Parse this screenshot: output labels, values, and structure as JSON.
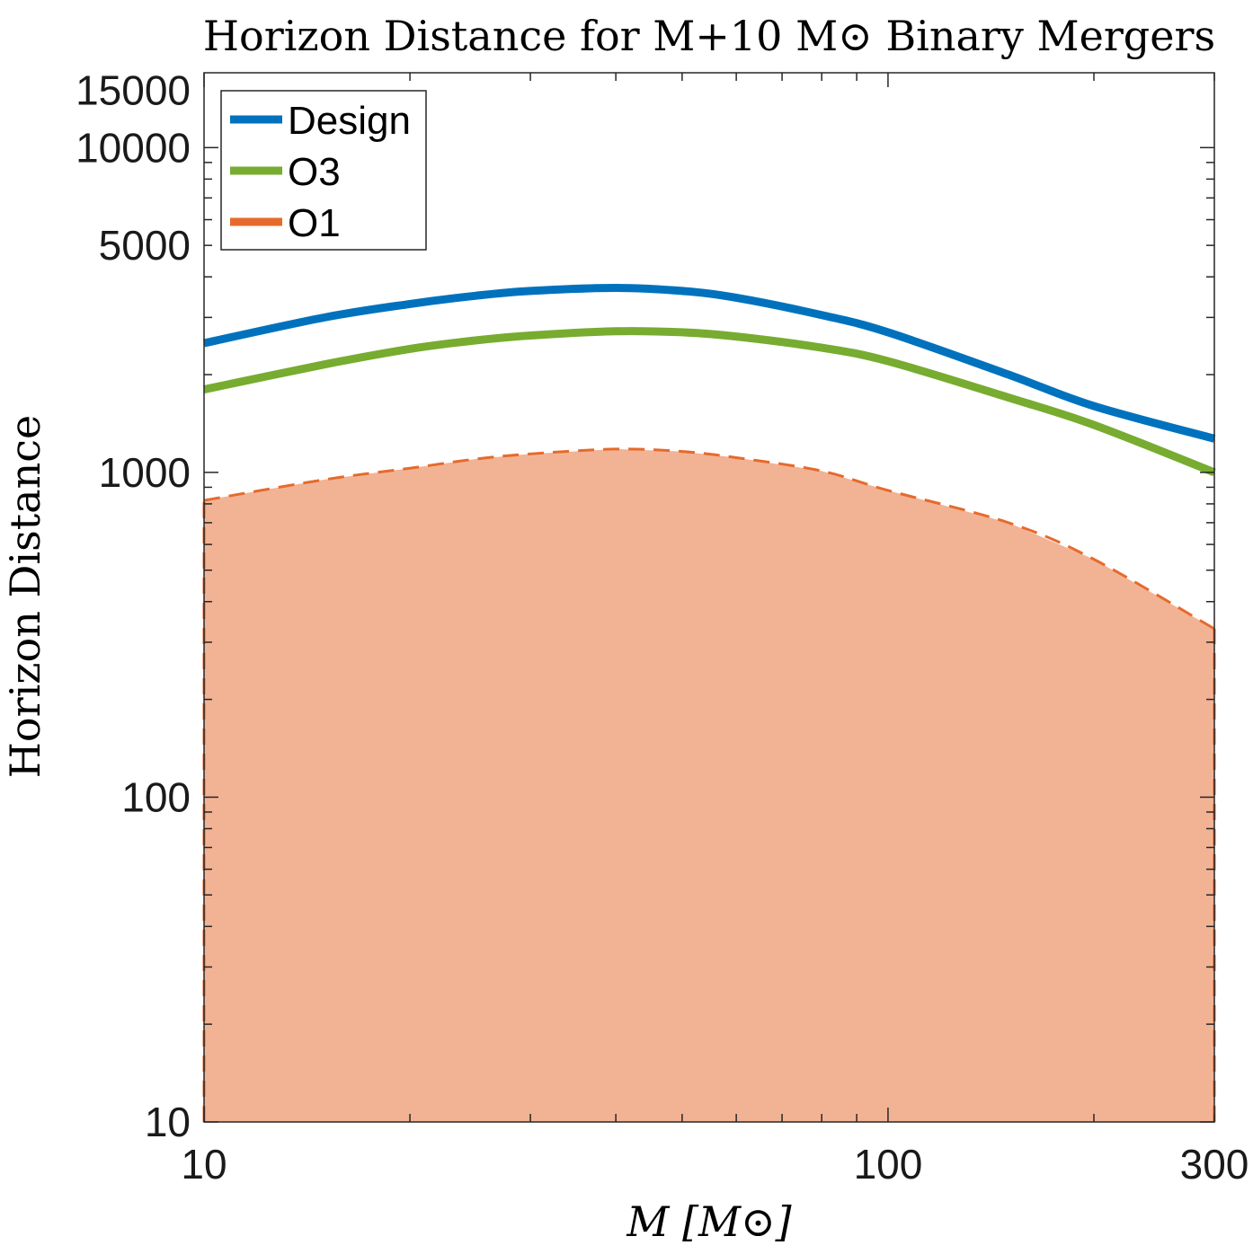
{
  "chart_data": {
    "type": "line",
    "title": "Horizon Distance for M+10 M⊙ Binary Mergers",
    "xlabel": "M [M⊙]",
    "ylabel": "Horizon  Distance",
    "xscale": "log",
    "yscale": "log",
    "xlim": [
      10,
      300
    ],
    "ylim": [
      10,
      17000
    ],
    "xticks": [
      10,
      100,
      300
    ],
    "xtick_labels": [
      "10",
      "100",
      "300"
    ],
    "yticks": [
      10,
      100,
      1000,
      5000,
      10000,
      15000
    ],
    "ytick_labels": [
      "10",
      "100",
      "1000",
      "5000",
      "10000",
      "15000"
    ],
    "grid": false,
    "legend_position": "top-left",
    "x": [
      10,
      15,
      20,
      25,
      30,
      40,
      50,
      60,
      80,
      100,
      150,
      200,
      300
    ],
    "series": [
      {
        "name": "Design",
        "color": "#0072BD",
        "style": "solid",
        "values": [
          2500,
          3000,
          3300,
          3500,
          3620,
          3700,
          3620,
          3450,
          3050,
          2700,
          2000,
          1600,
          1270
        ]
      },
      {
        "name": "O3",
        "color": "#77AC30",
        "style": "solid",
        "values": [
          1800,
          2150,
          2400,
          2550,
          2640,
          2720,
          2700,
          2620,
          2420,
          2200,
          1700,
          1400,
          1000
        ]
      },
      {
        "name": "O1",
        "color": "#E66A2C",
        "style": "dashed",
        "fill": "#F2B395",
        "values": [
          820,
          950,
          1030,
          1100,
          1140,
          1180,
          1160,
          1110,
          1010,
          880,
          700,
          540,
          330
        ]
      }
    ]
  }
}
